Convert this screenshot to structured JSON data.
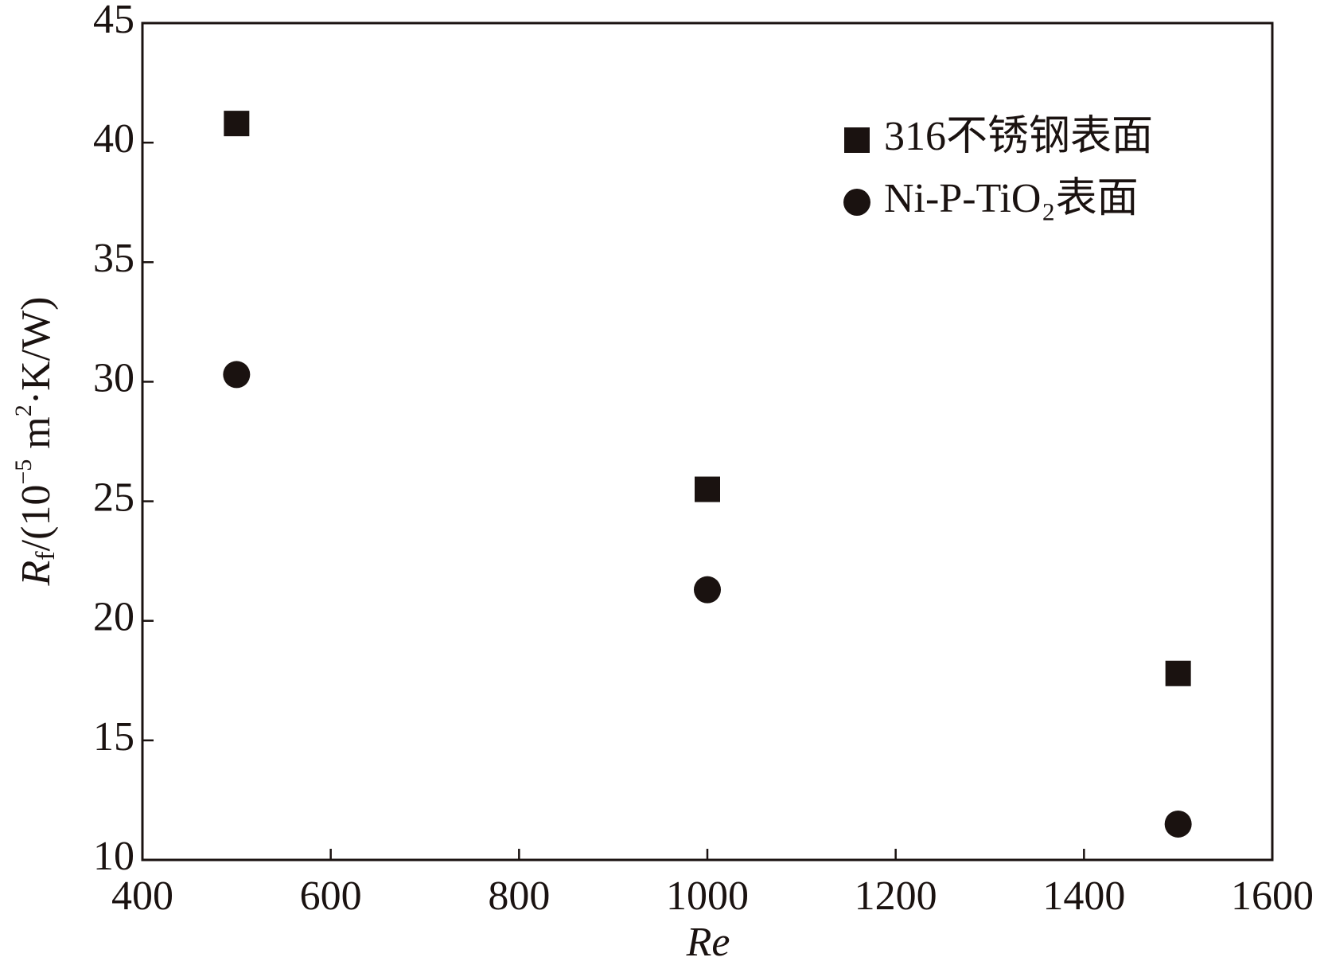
{
  "chart_data": {
    "type": "scatter",
    "x_label": "Re",
    "y_label_parts": [
      "R",
      "f",
      "/(10",
      "−5",
      " m",
      "2",
      "·K/W)"
    ],
    "xlim": [
      400,
      1600
    ],
    "xticks": [
      400,
      600,
      800,
      1000,
      1200,
      1400,
      1600
    ],
    "ylim": [
      10,
      45
    ],
    "yticks": [
      10,
      15,
      20,
      25,
      30,
      35,
      40,
      45
    ],
    "legend": "upper right",
    "series": [
      {
        "name": "316不锈钢表面",
        "marker": "square",
        "color": "#1a1210",
        "x": [
          500,
          1000,
          1500
        ],
        "values": [
          40.8,
          25.5,
          17.8
        ]
      },
      {
        "name": "Ni-P-TiO₂表面",
        "marker": "circle",
        "color": "#1a1210",
        "x": [
          500,
          1000,
          1500
        ],
        "values": [
          30.3,
          21.3,
          11.5
        ]
      }
    ]
  }
}
